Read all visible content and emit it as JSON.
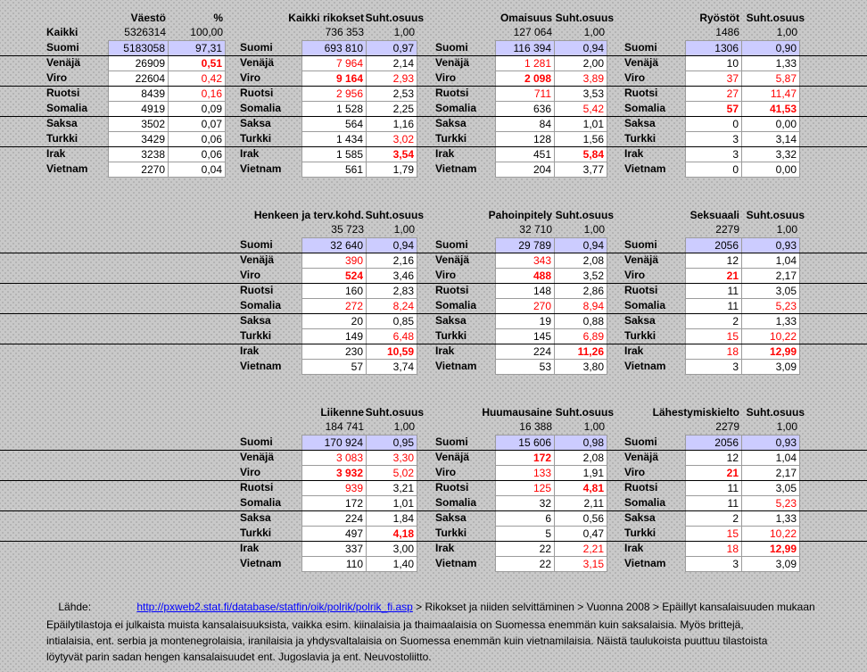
{
  "colors": {
    "highlight": "#ccccff",
    "red": "#ff0000",
    "link": "#0000ff",
    "grid": "#9c9c9c",
    "background": "#c9c9c9",
    "dot": "#adadad",
    "line": "#000000"
  },
  "table": {
    "suomi_label": "Suomi",
    "countries": [
      "Venäjä",
      "Viro",
      "Ruotsi",
      "Somalia",
      "Saksa",
      "Turkki",
      "Irak",
      "Vietnam"
    ],
    "sections": [
      {
        "blocks": [
          {
            "id": "vaesto",
            "group": 0,
            "value_header": "Väestö",
            "ratio_header": "%",
            "total_label": "Kaikki",
            "total": [
              "5326314",
              "100,00"
            ],
            "suomi": [
              "5183058",
              "97,31"
            ],
            "rows": [
              [
                "26909",
                "0,51",
                "",
                "b"
              ],
              [
                "22604",
                "0,42",
                "",
                "r"
              ],
              [
                "8439",
                "0,16",
                "",
                "r"
              ],
              [
                "4919",
                "0,09",
                "",
                ""
              ],
              [
                "3502",
                "0,07",
                "",
                ""
              ],
              [
                "3429",
                "0,06",
                "",
                ""
              ],
              [
                "3238",
                "0,06",
                "",
                ""
              ],
              [
                "2270",
                "0,04",
                "",
                ""
              ]
            ]
          },
          {
            "id": "kaikki-rikokset",
            "group": 1,
            "value_header": "Kaikki rikokset",
            "ratio_header": "Suht.osuus",
            "total": [
              "736 353",
              "1,00"
            ],
            "suomi": [
              "693 810",
              "0,97"
            ],
            "rows": [
              [
                "7 964",
                "2,14",
                "r",
                ""
              ],
              [
                "9 164",
                "2,93",
                "b",
                "r"
              ],
              [
                "2 956",
                "2,53",
                "r",
                ""
              ],
              [
                "1 528",
                "2,25",
                "",
                ""
              ],
              [
                "564",
                "1,16",
                "",
                ""
              ],
              [
                "1 434",
                "3,02",
                "",
                "r"
              ],
              [
                "1 585",
                "3,54",
                "",
                "b"
              ],
              [
                "561",
                "1,79",
                "",
                ""
              ]
            ]
          },
          {
            "id": "omaisuus",
            "group": 2,
            "value_header": "Omaisuus",
            "ratio_header": "Suht.osuus",
            "total": [
              "127 064",
              "1,00"
            ],
            "suomi": [
              "116 394",
              "0,94"
            ],
            "rows": [
              [
                "1 281",
                "2,00",
                "r",
                ""
              ],
              [
                "2 098",
                "3,89",
                "b",
                "r"
              ],
              [
                "711",
                "3,53",
                "r",
                ""
              ],
              [
                "636",
                "5,42",
                "",
                "r"
              ],
              [
                "84",
                "1,01",
                "",
                ""
              ],
              [
                "128",
                "1,56",
                "",
                ""
              ],
              [
                "451",
                "5,84",
                "",
                "b"
              ],
              [
                "204",
                "3,77",
                "",
                ""
              ]
            ]
          },
          {
            "id": "ryostot",
            "group": 3,
            "value_header": "Ryöstöt",
            "ratio_header": "Suht.osuus",
            "total": [
              "1486",
              "1,00"
            ],
            "suomi": [
              "1306",
              "0,90"
            ],
            "rows": [
              [
                "10",
                "1,33",
                "",
                ""
              ],
              [
                "37",
                "5,87",
                "r",
                "r"
              ],
              [
                "27",
                "11,47",
                "r",
                "r"
              ],
              [
                "57",
                "41,53",
                "b",
                "b"
              ],
              [
                "0",
                "0,00",
                "",
                ""
              ],
              [
                "3",
                "3,14",
                "",
                ""
              ],
              [
                "3",
                "3,32",
                "",
                ""
              ],
              [
                "0",
                "0,00",
                "",
                ""
              ]
            ]
          }
        ]
      },
      {
        "blocks": [
          {
            "id": "henkeen-ja-terv-kohd",
            "group": 1,
            "value_header": "Henkeen ja terv.kohd.",
            "ratio_header": "Suht.osuus",
            "total": [
              "35 723",
              "1,00"
            ],
            "suomi": [
              "32 640",
              "0,94"
            ],
            "rows": [
              [
                "390",
                "2,16",
                "r",
                ""
              ],
              [
                "524",
                "3,46",
                "b",
                ""
              ],
              [
                "160",
                "2,83",
                "",
                ""
              ],
              [
                "272",
                "8,24",
                "r",
                "r"
              ],
              [
                "20",
                "0,85",
                "",
                ""
              ],
              [
                "149",
                "6,48",
                "",
                "r"
              ],
              [
                "230",
                "10,59",
                "",
                "b"
              ],
              [
                "57",
                "3,74",
                "",
                ""
              ]
            ]
          },
          {
            "id": "pahoinpitely",
            "group": 2,
            "value_header": "Pahoinpitely",
            "ratio_header": "Suht.osuus",
            "total": [
              "32 710",
              "1,00"
            ],
            "suomi": [
              "29 789",
              "0,94"
            ],
            "rows": [
              [
                "343",
                "2,08",
                "r",
                ""
              ],
              [
                "488",
                "3,52",
                "b",
                ""
              ],
              [
                "148",
                "2,86",
                "",
                ""
              ],
              [
                "270",
                "8,94",
                "r",
                "r"
              ],
              [
                "19",
                "0,88",
                "",
                ""
              ],
              [
                "145",
                "6,89",
                "",
                "r"
              ],
              [
                "224",
                "11,26",
                "",
                "b"
              ],
              [
                "53",
                "3,80",
                "",
                ""
              ]
            ]
          },
          {
            "id": "seksuaali",
            "group": 3,
            "value_header": "Seksuaali",
            "ratio_header": "Suht.osuus",
            "total": [
              "2279",
              "1,00"
            ],
            "suomi": [
              "2056",
              "0,93"
            ],
            "rows": [
              [
                "12",
                "1,04",
                "",
                ""
              ],
              [
                "21",
                "2,17",
                "b",
                ""
              ],
              [
                "11",
                "3,05",
                "",
                ""
              ],
              [
                "11",
                "5,23",
                "",
                "r"
              ],
              [
                "2",
                "1,33",
                "",
                ""
              ],
              [
                "15",
                "10,22",
                "r",
                "r"
              ],
              [
                "18",
                "12,99",
                "r",
                "b"
              ],
              [
                "3",
                "3,09",
                "",
                ""
              ]
            ]
          }
        ]
      },
      {
        "blocks": [
          {
            "id": "liikenne",
            "group": 1,
            "value_header": "Liikenne",
            "ratio_header": "Suht.osuus",
            "total": [
              "184 741",
              "1,00"
            ],
            "suomi": [
              "170 924",
              "0,95"
            ],
            "rows": [
              [
                "3 083",
                "3,30",
                "r",
                "r"
              ],
              [
                "3 932",
                "5,02",
                "b",
                "r"
              ],
              [
                "939",
                "3,21",
                "r",
                ""
              ],
              [
                "172",
                "1,01",
                "",
                ""
              ],
              [
                "224",
                "1,84",
                "",
                ""
              ],
              [
                "497",
                "4,18",
                "",
                "b"
              ],
              [
                "337",
                "3,00",
                "",
                ""
              ],
              [
                "110",
                "1,40",
                "",
                ""
              ]
            ]
          },
          {
            "id": "huumausaine",
            "group": 2,
            "value_header": "Huumausaine",
            "ratio_header": "Suht.osuus",
            "total": [
              "16 388",
              "1,00"
            ],
            "suomi": [
              "15 606",
              "0,98"
            ],
            "rows": [
              [
                "172",
                "2,08",
                "b",
                ""
              ],
              [
                "133",
                "1,91",
                "r",
                ""
              ],
              [
                "125",
                "4,81",
                "r",
                "b"
              ],
              [
                "32",
                "2,11",
                "",
                ""
              ],
              [
                "6",
                "0,56",
                "",
                ""
              ],
              [
                "5",
                "0,47",
                "",
                ""
              ],
              [
                "22",
                "2,21",
                "",
                "r"
              ],
              [
                "22",
                "3,15",
                "",
                "r"
              ]
            ]
          },
          {
            "id": "lahestymiskielto",
            "group": 3,
            "value_header": "Lähestymiskielto",
            "ratio_header": "Suht.osuus",
            "total": [
              "2279",
              "1,00"
            ],
            "suomi": [
              "2056",
              "0,93"
            ],
            "rows": [
              [
                "12",
                "1,04",
                "",
                ""
              ],
              [
                "21",
                "2,17",
                "b",
                ""
              ],
              [
                "11",
                "3,05",
                "",
                ""
              ],
              [
                "11",
                "5,23",
                "",
                "r"
              ],
              [
                "2",
                "1,33",
                "",
                ""
              ],
              [
                "15",
                "10,22",
                "r",
                "r"
              ],
              [
                "18",
                "12,99",
                "r",
                "b"
              ],
              [
                "3",
                "3,09",
                "",
                ""
              ]
            ]
          }
        ]
      }
    ]
  },
  "footer": {
    "source_label": "Lähde:",
    "source_link": "http://pxweb2.stat.fi/database/statfin/oik/polrik/polrik_fi.asp",
    "source_breadcrumb": " > Rikokset ja niiden selvittäminen > Vuonna 2008 > Epäillyt kansalaisuuden mukaan",
    "footnote_lines": [
      "Epäilytilastoja ei julkaista muista kansalaisuuksista, vaikka esim. kiinalaisia ja thaimaalaisia on Suomessa enemmän kuin saksalaisia. Myös brittejä,",
      "intialaisia, ent. serbia ja montenegrolaisia, iranilaisia ja yhdysvaltalaisia on Suomessa enemmän kuin vietnamilaisia. Näistä taulukoista puuttuu tilastoista",
      "löytyvät parin sadan hengen kansalaisuudet ent. Jugoslavia ja ent. Neuvostoliitto."
    ]
  }
}
